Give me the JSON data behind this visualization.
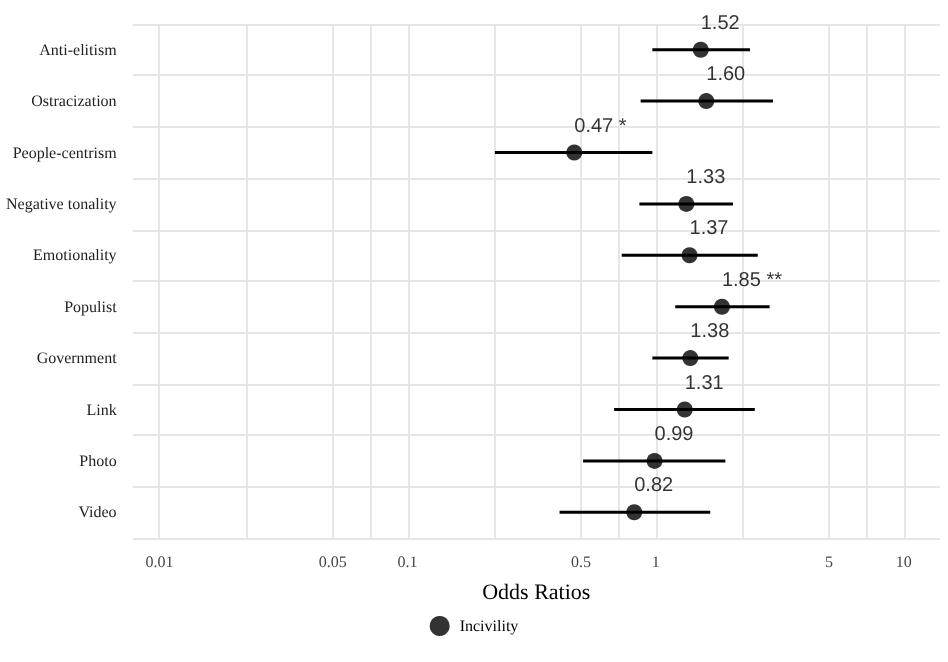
{
  "chart_data": {
    "type": "scatter",
    "orientation": "horizontal",
    "xlabel": "Odds Ratios",
    "categories": [
      "Anti-elitism",
      "Ostracization",
      "People-centrism",
      "Negative tonality",
      "Emotionality",
      "Populist",
      "Government",
      "Link",
      "Photo",
      "Video"
    ],
    "series": [
      {
        "name": "Incivility",
        "color": "#000000",
        "values": [
          1.52,
          1.6,
          0.47,
          1.33,
          1.37,
          1.85,
          1.38,
          1.31,
          0.99,
          0.82
        ],
        "errors": [
          [
            0.97,
            2.4
          ],
          [
            0.87,
            2.97
          ],
          [
            0.225,
            0.97
          ],
          [
            0.86,
            2.05
          ],
          [
            0.73,
            2.58
          ],
          [
            1.2,
            2.88
          ],
          [
            0.97,
            1.97
          ],
          [
            0.68,
            2.51
          ],
          [
            0.51,
            1.91
          ],
          [
            0.41,
            1.66
          ]
        ],
        "value_labels": [
          "1.52",
          "1.60",
          "0.47 *",
          "1.33",
          "1.37",
          "1.85 **",
          "1.38",
          "1.31",
          "0.99",
          "0.82"
        ]
      }
    ],
    "log": "x",
    "xlim": [
      0.0078,
      14
    ],
    "xticks": [
      0.01,
      {
        "value": 0.0224,
        "label": null
      },
      0.05,
      {
        "value": 0.0707,
        "label": null
      },
      0.1,
      {
        "value": 0.224,
        "label": null
      },
      0.5,
      {
        "value": 0.707,
        "label": null
      },
      1,
      {
        "value": 2.24,
        "label": null
      },
      5,
      {
        "value": 7.07,
        "label": null
      },
      10
    ],
    "grid": true,
    "legend": "bottom",
    "marker": "circle",
    "line_style": "solid"
  }
}
